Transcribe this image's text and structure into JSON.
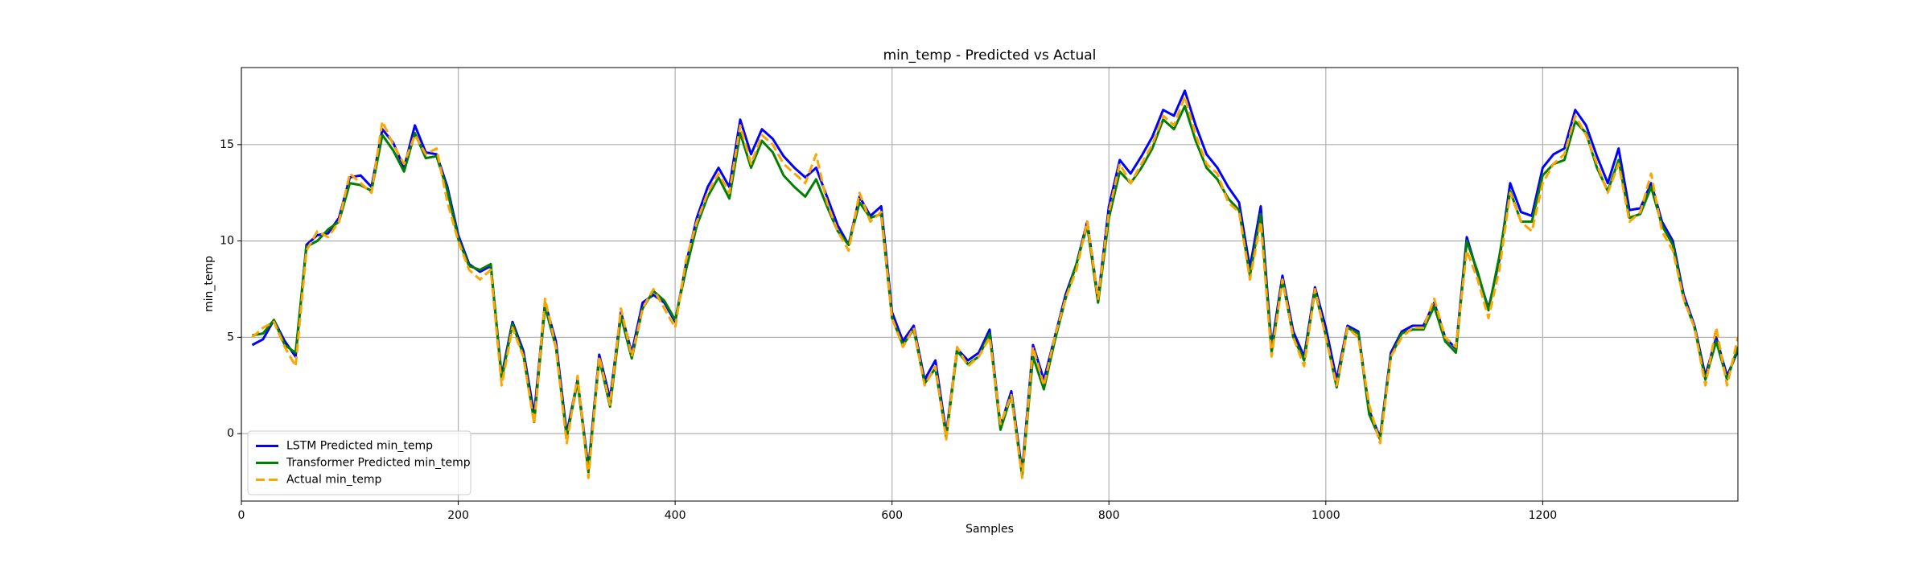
{
  "chart_data": {
    "type": "line",
    "title": "min_temp - Predicted vs Actual",
    "x_label": "Samples",
    "y_label": "min_temp",
    "xlim": [
      0,
      1380
    ],
    "xticks": [
      0,
      200,
      400,
      600,
      800,
      1000,
      1200
    ],
    "ylim": [
      -3.5,
      19.0
    ],
    "yticks": [
      0,
      5,
      10,
      15
    ],
    "grid": true,
    "legend": "lower left",
    "x": [
      10,
      20,
      30,
      40,
      50,
      60,
      70,
      80,
      90,
      100,
      110,
      120,
      130,
      140,
      150,
      160,
      170,
      180,
      190,
      200,
      210,
      220,
      230,
      240,
      250,
      260,
      270,
      280,
      290,
      300,
      310,
      320,
      330,
      340,
      350,
      360,
      370,
      380,
      390,
      400,
      410,
      420,
      430,
      440,
      450,
      460,
      470,
      480,
      490,
      500,
      510,
      520,
      530,
      540,
      550,
      560,
      570,
      580,
      590,
      600,
      610,
      620,
      630,
      640,
      650,
      660,
      670,
      680,
      690,
      700,
      710,
      720,
      730,
      740,
      750,
      760,
      770,
      780,
      790,
      800,
      810,
      820,
      830,
      840,
      850,
      860,
      870,
      880,
      890,
      900,
      910,
      920,
      930,
      940,
      950,
      960,
      970,
      980,
      990,
      1000,
      1010,
      1020,
      1030,
      1040,
      1050,
      1060,
      1070,
      1080,
      1090,
      1100,
      1110,
      1120,
      1130,
      1140,
      1150,
      1160,
      1170,
      1180,
      1190,
      1200,
      1210,
      1220,
      1230,
      1240,
      1250,
      1260,
      1270,
      1280,
      1290,
      1300,
      1310,
      1320,
      1330,
      1340,
      1350,
      1360,
      1370,
      1380
    ],
    "series": [
      {
        "name": "LSTM Predicted min_temp",
        "color": "#0000ff",
        "dash": "solid",
        "values": [
          4.6,
          4.9,
          5.9,
          4.8,
          4.0,
          9.8,
          10.3,
          10.4,
          11.2,
          13.3,
          13.4,
          12.8,
          15.8,
          15.1,
          13.8,
          16.0,
          14.6,
          14.5,
          12.8,
          10.3,
          8.8,
          8.4,
          8.7,
          3.0,
          5.8,
          4.3,
          1.0,
          6.8,
          4.8,
          0.0,
          2.8,
          -1.8,
          4.1,
          1.8,
          6.3,
          4.2,
          6.8,
          7.2,
          6.8,
          5.8,
          8.8,
          11.2,
          12.8,
          13.8,
          12.8,
          16.3,
          14.5,
          15.8,
          15.3,
          14.4,
          13.8,
          13.3,
          13.8,
          12.3,
          10.8,
          9.8,
          12.3,
          11.3,
          11.8,
          6.3,
          4.8,
          5.6,
          2.8,
          3.8,
          0.0,
          4.4,
          3.8,
          4.2,
          5.4,
          0.4,
          2.2,
          -2.0,
          4.6,
          2.8,
          5.0,
          7.2,
          8.8,
          11.0,
          7.0,
          11.8,
          14.2,
          13.5,
          14.4,
          15.4,
          16.8,
          16.5,
          17.8,
          16.0,
          14.5,
          13.8,
          12.8,
          12.0,
          8.6,
          11.8,
          4.5,
          8.2,
          5.3,
          4.0,
          7.6,
          5.5,
          2.8,
          5.6,
          5.3,
          1.2,
          -0.2,
          4.2,
          5.3,
          5.6,
          5.6,
          6.8,
          5.0,
          4.4,
          10.2,
          8.3,
          6.5,
          9.0,
          13.0,
          11.5,
          11.3,
          13.8,
          14.5,
          14.8,
          16.8,
          16.0,
          14.4,
          13.0,
          14.8,
          11.6,
          11.7,
          13.0,
          11.0,
          10.0,
          7.2,
          5.6,
          3.0,
          5.0,
          3.0,
          4.3
        ]
      },
      {
        "name": "Transformer Predicted min_temp",
        "color": "#008000",
        "dash": "solid",
        "values": [
          5.1,
          5.2,
          5.9,
          4.6,
          4.2,
          9.7,
          10.0,
          10.6,
          11.0,
          13.0,
          12.9,
          12.6,
          15.5,
          14.7,
          13.6,
          15.6,
          14.3,
          14.4,
          12.6,
          10.1,
          8.7,
          8.5,
          8.8,
          2.8,
          5.7,
          4.1,
          0.6,
          6.6,
          4.5,
          -0.2,
          2.7,
          -2.0,
          3.9,
          1.4,
          6.1,
          3.9,
          6.5,
          7.4,
          6.9,
          5.9,
          8.5,
          10.8,
          12.3,
          13.3,
          12.2,
          15.6,
          13.8,
          15.2,
          14.6,
          13.4,
          12.8,
          12.3,
          13.2,
          11.8,
          10.5,
          9.8,
          12.0,
          11.2,
          11.4,
          6.0,
          4.6,
          5.4,
          2.6,
          3.4,
          -0.2,
          4.3,
          3.6,
          4.0,
          5.2,
          0.2,
          2.0,
          -2.2,
          4.0,
          2.3,
          4.8,
          7.0,
          8.8,
          10.8,
          6.8,
          11.2,
          13.6,
          13.0,
          13.8,
          14.8,
          16.3,
          15.8,
          17.0,
          15.2,
          13.8,
          13.2,
          12.2,
          11.6,
          8.2,
          11.4,
          4.2,
          8.0,
          5.0,
          3.8,
          7.4,
          5.1,
          2.4,
          5.5,
          5.2,
          1.0,
          -0.3,
          4.0,
          5.2,
          5.4,
          5.4,
          6.6,
          4.8,
          4.2,
          10.0,
          8.4,
          6.4,
          9.2,
          12.6,
          11.0,
          11.0,
          13.4,
          14.0,
          14.2,
          16.2,
          15.6,
          13.8,
          12.6,
          14.2,
          11.2,
          11.4,
          12.8,
          10.8,
          9.8,
          7.0,
          5.5,
          2.8,
          4.8,
          2.8,
          4.5
        ]
      },
      {
        "name": "Actual min_temp",
        "color": "#ffa500",
        "dash": "dashed",
        "values": [
          5.0,
          5.5,
          5.8,
          4.5,
          3.5,
          9.5,
          10.5,
          10.2,
          11.0,
          13.5,
          13.0,
          12.5,
          16.2,
          15.0,
          14.0,
          15.5,
          14.5,
          14.8,
          12.0,
          10.0,
          8.5,
          8.0,
          8.5,
          2.5,
          5.5,
          4.0,
          0.5,
          7.0,
          4.5,
          -0.5,
          3.0,
          -2.3,
          4.0,
          1.5,
          6.5,
          4.0,
          6.5,
          7.5,
          6.5,
          5.5,
          9.0,
          11.0,
          12.5,
          13.5,
          12.5,
          16.0,
          14.0,
          15.5,
          15.0,
          14.0,
          13.5,
          13.0,
          14.5,
          12.0,
          10.5,
          9.5,
          12.5,
          11.0,
          11.5,
          6.0,
          4.5,
          5.5,
          2.5,
          3.5,
          -0.3,
          4.5,
          3.5,
          4.0,
          5.0,
          0.5,
          2.0,
          -2.3,
          4.5,
          2.5,
          5.0,
          7.0,
          8.5,
          11.0,
          7.0,
          11.5,
          14.0,
          13.0,
          14.0,
          15.0,
          16.5,
          16.0,
          17.5,
          15.5,
          14.0,
          13.5,
          12.0,
          11.5,
          8.0,
          11.0,
          4.0,
          8.0,
          5.0,
          3.5,
          7.5,
          5.0,
          2.5,
          5.5,
          5.0,
          1.5,
          -0.5,
          4.0,
          5.0,
          5.5,
          5.5,
          7.0,
          5.0,
          4.5,
          9.5,
          8.0,
          6.0,
          8.5,
          12.5,
          11.0,
          10.5,
          13.0,
          14.0,
          14.5,
          16.5,
          15.5,
          14.0,
          12.5,
          14.0,
          11.0,
          11.5,
          13.5,
          10.5,
          9.5,
          7.0,
          5.5,
          2.5,
          5.5,
          2.5,
          5.0
        ]
      }
    ]
  }
}
